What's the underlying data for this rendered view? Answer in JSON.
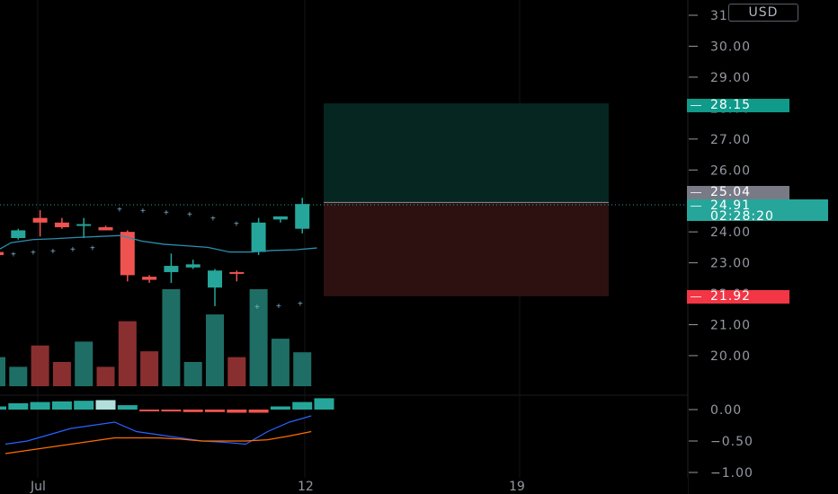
{
  "currency_button": "USD",
  "price_axis": {
    "labels": [
      "31.00",
      "30.00",
      "29.00",
      "28.00",
      "27.00",
      "26.00",
      "25.00",
      "24.00",
      "23.00",
      "22.00",
      "21.00",
      "20.00"
    ]
  },
  "indicator_axis": {
    "labels": [
      "0.00",
      "−0.50",
      "−1.00"
    ]
  },
  "date_axis": {
    "labels": [
      "Jul",
      "12",
      "19"
    ]
  },
  "badges": {
    "target": {
      "text": "28.15",
      "color": "#0f9a8a"
    },
    "last_close": {
      "text": "25.04",
      "color": "#787b86"
    },
    "current": {
      "price": "24.91",
      "countdown": "02:28:20",
      "color": "#26a69a"
    },
    "stop": {
      "text": "21.92",
      "color": "#f23645"
    }
  },
  "colors": {
    "up": "#26a69a",
    "down": "#ef5350",
    "up_volume": "#1f6e66",
    "down_volume": "#8a2f30",
    "target_zone": "#062622",
    "stop_zone": "#2c1110",
    "ma_line": "#2a8fb0",
    "grid": "#1a1a1a"
  },
  "chart_data": {
    "type": "candlestick",
    "candles": [
      {
        "o": 23.35,
        "h": 23.45,
        "l": 22.95,
        "c": 23.25,
        "dir": "down"
      },
      {
        "o": 23.8,
        "h": 24.1,
        "l": 23.75,
        "c": 24.05,
        "dir": "up"
      },
      {
        "o": 24.45,
        "h": 24.7,
        "l": 23.85,
        "c": 24.3,
        "dir": "down"
      },
      {
        "o": 24.3,
        "h": 24.45,
        "l": 24.1,
        "c": 24.15,
        "dir": "down"
      },
      {
        "o": 24.2,
        "h": 24.45,
        "l": 23.8,
        "c": 24.25,
        "dir": "up"
      },
      {
        "o": 24.15,
        "h": 24.2,
        "l": 24.05,
        "c": 24.05,
        "dir": "down"
      },
      {
        "o": 24.0,
        "h": 24.05,
        "l": 22.4,
        "c": 22.6,
        "dir": "down"
      },
      {
        "o": 22.55,
        "h": 22.6,
        "l": 22.35,
        "c": 22.45,
        "dir": "down"
      },
      {
        "o": 22.7,
        "h": 23.3,
        "l": 22.35,
        "c": 22.9,
        "dir": "up"
      },
      {
        "o": 22.85,
        "h": 23.1,
        "l": 22.8,
        "c": 22.95,
        "dir": "up"
      },
      {
        "o": 22.2,
        "h": 22.8,
        "l": 21.6,
        "c": 22.75,
        "dir": "up"
      },
      {
        "o": 22.7,
        "h": 22.75,
        "l": 22.4,
        "c": 22.7,
        "dir": "down"
      },
      {
        "o": 23.35,
        "h": 24.45,
        "l": 23.25,
        "c": 24.3,
        "dir": "up"
      },
      {
        "o": 24.4,
        "h": 24.5,
        "l": 24.3,
        "c": 24.5,
        "dir": "up"
      },
      {
        "o": 24.1,
        "h": 25.1,
        "l": 23.95,
        "c": 24.9,
        "dir": "up"
      }
    ],
    "volume": [
      {
        "v": 0.3,
        "dir": "up"
      },
      {
        "v": 0.2,
        "dir": "up"
      },
      {
        "v": 0.42,
        "dir": "down"
      },
      {
        "v": 0.25,
        "dir": "down"
      },
      {
        "v": 0.46,
        "dir": "up"
      },
      {
        "v": 0.2,
        "dir": "down"
      },
      {
        "v": 0.67,
        "dir": "down"
      },
      {
        "v": 0.36,
        "dir": "down"
      },
      {
        "v": 1.0,
        "dir": "up"
      },
      {
        "v": 0.25,
        "dir": "up"
      },
      {
        "v": 0.74,
        "dir": "up"
      },
      {
        "v": 0.3,
        "dir": "down"
      },
      {
        "v": 1.0,
        "dir": "up"
      },
      {
        "v": 0.49,
        "dir": "up"
      },
      {
        "v": 0.35,
        "dir": "up"
      }
    ],
    "ma_line": [
      23.25,
      23.65,
      23.75,
      23.78,
      23.82,
      23.85,
      23.88,
      23.7,
      23.6,
      23.55,
      23.5,
      23.35,
      23.35,
      23.4,
      23.42,
      23.48
    ],
    "upper_dots": [
      24.75,
      24.7,
      24.65,
      24.58,
      24.45,
      24.28
    ],
    "lower_dots": [
      23.3,
      23.35,
      23.4,
      23.45,
      23.5
    ],
    "right_dots": [
      21.6,
      21.63,
      21.7
    ],
    "histogram": [
      0.05,
      0.1,
      0.12,
      0.13,
      0.14,
      0.15,
      0.07,
      -0.02,
      -0.03,
      -0.04,
      -0.04,
      -0.05,
      -0.05,
      0.05,
      0.12,
      0.18
    ],
    "macd": [
      -0.55,
      -0.5,
      -0.4,
      -0.3,
      -0.25,
      -0.2,
      -0.35,
      -0.4,
      -0.45,
      -0.5,
      -0.52,
      -0.55,
      -0.35,
      -0.2,
      -0.1
    ],
    "signal": [
      -0.7,
      -0.65,
      -0.6,
      -0.55,
      -0.5,
      -0.45,
      -0.45,
      -0.45,
      -0.47,
      -0.5,
      -0.5,
      -0.5,
      -0.48,
      -0.42,
      -0.35
    ],
    "position": {
      "entry": 24.95,
      "target": 28.15,
      "stop": 21.92
    },
    "ylim": [
      19.2,
      31.5
    ],
    "indicator_ylim": [
      -1.05,
      0.15
    ]
  }
}
